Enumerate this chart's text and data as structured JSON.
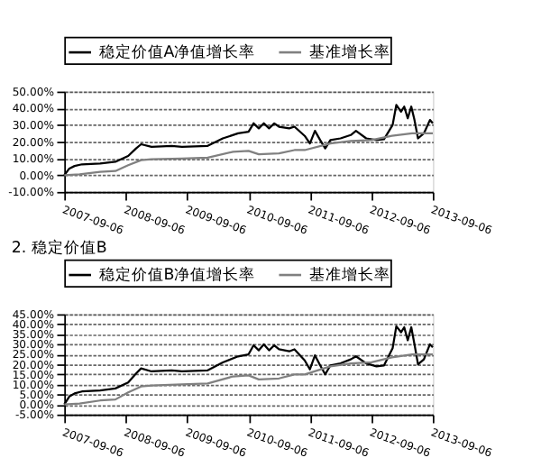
{
  "chart_data": [
    {
      "type": "line",
      "legend": "top",
      "grid": "y",
      "line_style": "solid",
      "marker": "none",
      "xlim": [
        "2007-09-06",
        "2013-09-06"
      ],
      "xticks": [
        "2007-09-06",
        "2008-09-06",
        "2009-09-06",
        "2010-09-06",
        "2011-09-06",
        "2012-09-06",
        "2013-09-06"
      ],
      "ylim": [
        -10,
        50
      ],
      "yticks": [
        {
          "value": -10,
          "label": "-10.00%"
        },
        {
          "value": 0,
          "label": "0.00%"
        },
        {
          "value": 10,
          "label": "10.00%"
        },
        {
          "value": 20,
          "label": "20.00%"
        },
        {
          "value": 30,
          "label": "30.00%"
        },
        {
          "value": 40,
          "label": "40.00%"
        },
        {
          "value": 50,
          "label": "50.00%"
        }
      ],
      "series": [
        {
          "name": "稳定价值A净值增长率",
          "color": "#000000",
          "x": [
            "2007-09-06",
            "2007-10-06",
            "2007-11-06",
            "2007-12-20",
            "2008-04-06",
            "2008-07-06",
            "2008-09-20",
            "2008-11-06",
            "2008-12-06",
            "2009-02-06",
            "2009-06-06",
            "2009-08-06",
            "2010-01-06",
            "2010-04-06",
            "2010-07-06",
            "2010-09-06",
            "2010-10-06",
            "2010-11-06",
            "2010-12-06",
            "2011-01-06",
            "2011-02-06",
            "2011-03-06",
            "2011-05-06",
            "2011-06-06",
            "2011-08-06",
            "2011-09-06",
            "2011-10-06",
            "2011-11-06",
            "2011-12-06",
            "2012-01-06",
            "2012-03-06",
            "2012-05-06",
            "2012-06-06",
            "2012-08-06",
            "2012-10-06",
            "2012-11-20",
            "2013-01-10",
            "2013-02-01",
            "2013-03-01",
            "2013-03-20",
            "2013-04-10",
            "2013-05-01",
            "2013-05-20",
            "2013-06-10",
            "2013-07-15",
            "2013-08-20",
            "2013-09-06"
          ],
          "values": [
            0,
            4,
            5.5,
            6.5,
            7,
            8,
            11.5,
            16,
            18.5,
            17,
            17.5,
            17,
            17.5,
            22,
            25,
            26,
            31,
            28,
            31,
            28,
            31,
            29,
            28,
            29,
            23.5,
            19,
            26.5,
            21,
            16,
            21,
            22,
            24,
            26.5,
            22,
            21,
            21.5,
            30,
            42,
            38,
            41,
            34,
            41,
            33,
            22,
            25,
            33,
            31
          ]
        },
        {
          "name": "基准增长率",
          "color": "#808080",
          "x": [
            "2007-09-06",
            "2007-12-06",
            "2008-04-06",
            "2008-07-06",
            "2008-09-20",
            "2008-12-06",
            "2009-02-06",
            "2009-08-06",
            "2010-01-06",
            "2010-06-06",
            "2010-09-06",
            "2010-11-06",
            "2011-03-06",
            "2011-06-06",
            "2011-08-06",
            "2012-01-06",
            "2012-05-06",
            "2012-09-06",
            "2013-01-06",
            "2013-05-06",
            "2013-09-06"
          ],
          "values": [
            0,
            0.5,
            2,
            2.5,
            6,
            9,
            9.5,
            10,
            10.5,
            14,
            14.5,
            12.5,
            13,
            15,
            15,
            19,
            20.5,
            21,
            23.5,
            25,
            25
          ]
        }
      ]
    },
    {
      "type": "line",
      "title": "2. 稳定价值B",
      "legend": "top",
      "grid": "y",
      "line_style": "solid",
      "marker": "none",
      "xlim": [
        "2007-09-06",
        "2013-09-06"
      ],
      "xticks": [
        "2007-09-06",
        "2008-09-06",
        "2009-09-06",
        "2010-09-06",
        "2011-09-06",
        "2012-09-06",
        "2013-09-06"
      ],
      "ylim": [
        -5,
        45
      ],
      "yticks": [
        {
          "value": -5,
          "label": "-5.00%"
        },
        {
          "value": 0,
          "label": "0.00%"
        },
        {
          "value": 5,
          "label": "5.00%"
        },
        {
          "value": 10,
          "label": "10.00%"
        },
        {
          "value": 15,
          "label": "15.00%"
        },
        {
          "value": 20,
          "label": "20.00%"
        },
        {
          "value": 25,
          "label": "25.00%"
        },
        {
          "value": 30,
          "label": "30.00%"
        },
        {
          "value": 35,
          "label": "35.00%"
        },
        {
          "value": 40,
          "label": "40.00%"
        },
        {
          "value": 45,
          "label": "45.00%"
        }
      ],
      "series": [
        {
          "name": "稳定价值B净值增长率",
          "color": "#000000",
          "x": [
            "2007-09-06",
            "2007-10-06",
            "2007-11-06",
            "2007-12-20",
            "2008-04-06",
            "2008-07-06",
            "2008-09-20",
            "2008-11-06",
            "2008-12-06",
            "2009-02-06",
            "2009-06-06",
            "2009-08-06",
            "2010-01-06",
            "2010-04-06",
            "2010-07-06",
            "2010-09-06",
            "2010-10-06",
            "2010-11-06",
            "2010-12-06",
            "2011-01-06",
            "2011-02-06",
            "2011-03-06",
            "2011-05-06",
            "2011-06-06",
            "2011-08-06",
            "2011-09-06",
            "2011-10-06",
            "2011-11-06",
            "2011-12-06",
            "2012-01-06",
            "2012-03-06",
            "2012-05-06",
            "2012-06-06",
            "2012-08-06",
            "2012-10-06",
            "2012-11-20",
            "2013-01-10",
            "2013-02-01",
            "2013-03-01",
            "2013-03-20",
            "2013-04-10",
            "2013-05-01",
            "2013-05-20",
            "2013-06-10",
            "2013-07-15",
            "2013-08-20",
            "2013-09-06"
          ],
          "values": [
            0,
            4,
            5.5,
            6.5,
            7,
            8,
            11,
            15.5,
            18,
            16.5,
            17,
            16.5,
            17,
            21,
            24,
            25,
            29.5,
            27,
            30,
            27,
            29.5,
            27.5,
            26.5,
            27.5,
            22,
            17.5,
            24.5,
            19.5,
            15,
            19.5,
            20.5,
            22.5,
            24,
            20.5,
            19,
            19.5,
            28,
            39,
            36,
            38.5,
            32,
            38.5,
            30,
            20,
            22.5,
            30,
            28.5
          ]
        },
        {
          "name": "基准增长率",
          "color": "#808080",
          "x": [
            "2007-09-06",
            "2007-12-06",
            "2008-04-06",
            "2008-07-06",
            "2008-09-20",
            "2008-12-06",
            "2009-02-06",
            "2009-08-06",
            "2010-01-06",
            "2010-06-06",
            "2010-09-06",
            "2010-11-06",
            "2011-03-06",
            "2011-06-06",
            "2011-08-06",
            "2012-01-06",
            "2012-05-06",
            "2012-09-06",
            "2013-01-06",
            "2013-05-06",
            "2013-09-06"
          ],
          "values": [
            0,
            0.5,
            2,
            2.5,
            6,
            9,
            9.5,
            10,
            10.5,
            14,
            14.5,
            12.5,
            13,
            15,
            15,
            19,
            20.5,
            21,
            23.5,
            25,
            25
          ]
        }
      ]
    }
  ]
}
